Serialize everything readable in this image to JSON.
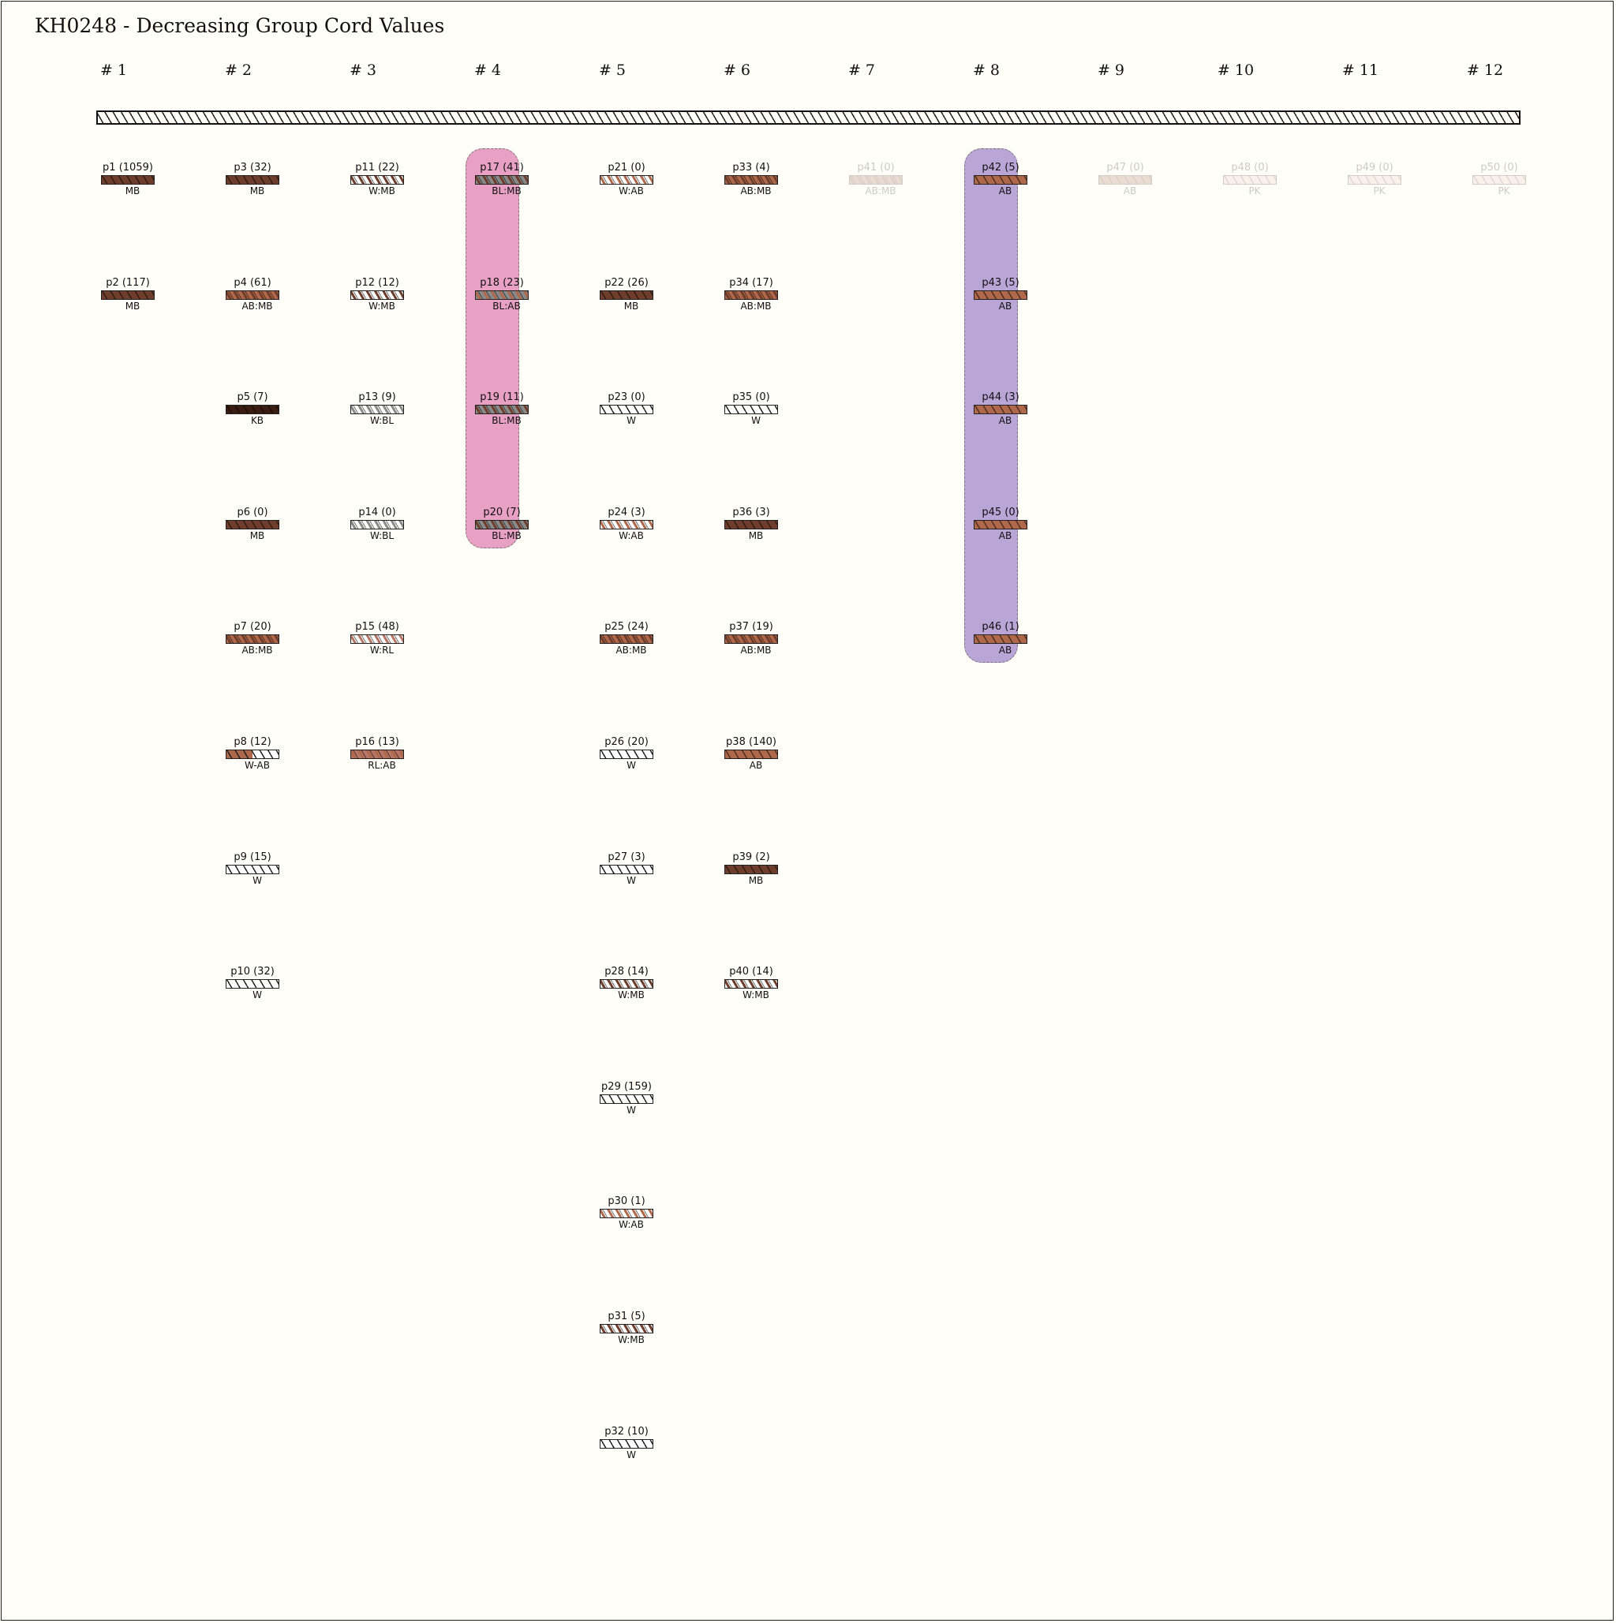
{
  "title": "KH0248 - Decreasing Group Cord Values",
  "groups": [
    "# 1",
    "# 2",
    "# 3",
    "# 4",
    "# 5",
    "# 6",
    "# 7",
    "# 8",
    "# 9",
    "# 10",
    "# 11",
    "# 12"
  ],
  "colors": {
    "MB": "#6e3d2b",
    "KB": "#3b1c12",
    "AB": "#b0684a",
    "W": "#ffffff",
    "BL": "#8a8a8a",
    "RL": "#b77565",
    "PK": "#f1c8be",
    "highlight_group4": "#e8a0c4",
    "highlight_group8": "#b9a5d6",
    "background": "#fffef8"
  },
  "highlights": [
    {
      "group": 4,
      "from_row": 1,
      "to_row": 4
    },
    {
      "group": 8,
      "from_row": 1,
      "to_row": 5
    }
  ],
  "cords": [
    {
      "label": "p1 (1059)",
      "color": "MB",
      "group": 1,
      "row": 1
    },
    {
      "label": "p2 (117)",
      "color": "MB",
      "group": 1,
      "row": 2
    },
    {
      "label": "p3 (32)",
      "color": "MB",
      "group": 2,
      "row": 1
    },
    {
      "label": "p4 (61)",
      "color": "AB:MB",
      "group": 2,
      "row": 2
    },
    {
      "label": "p5 (7)",
      "color": "KB",
      "group": 2,
      "row": 3
    },
    {
      "label": "p6 (0)",
      "color": "MB",
      "group": 2,
      "row": 4
    },
    {
      "label": "p7 (20)",
      "color": "AB:MB",
      "group": 2,
      "row": 5
    },
    {
      "label": "p8 (12)",
      "color": "W-AB",
      "group": 2,
      "row": 6
    },
    {
      "label": "p9 (15)",
      "color": "W",
      "group": 2,
      "row": 7
    },
    {
      "label": "p10 (32)",
      "color": "W",
      "group": 2,
      "row": 8
    },
    {
      "label": "p11 (22)",
      "color": "W:MB",
      "group": 3,
      "row": 1
    },
    {
      "label": "p12 (12)",
      "color": "W:MB",
      "group": 3,
      "row": 2
    },
    {
      "label": "p13 (9)",
      "color": "W:BL",
      "group": 3,
      "row": 3
    },
    {
      "label": "p14 (0)",
      "color": "W:BL",
      "group": 3,
      "row": 4
    },
    {
      "label": "p15 (48)",
      "color": "W:RL",
      "group": 3,
      "row": 5
    },
    {
      "label": "p16 (13)",
      "color": "RL:AB",
      "group": 3,
      "row": 6
    },
    {
      "label": "p17 (41)",
      "color": "BL:MB",
      "group": 4,
      "row": 1
    },
    {
      "label": "p18 (23)",
      "color": "BL:AB",
      "group": 4,
      "row": 2
    },
    {
      "label": "p19 (11)",
      "color": "BL:MB",
      "group": 4,
      "row": 3
    },
    {
      "label": "p20 (7)",
      "color": "BL:MB",
      "group": 4,
      "row": 4
    },
    {
      "label": "p21 (0)",
      "color": "W:AB",
      "group": 5,
      "row": 1
    },
    {
      "label": "p22 (26)",
      "color": "MB",
      "group": 5,
      "row": 2
    },
    {
      "label": "p23 (0)",
      "color": "W",
      "group": 5,
      "row": 3
    },
    {
      "label": "p24 (3)",
      "color": "W:AB",
      "group": 5,
      "row": 4
    },
    {
      "label": "p25 (24)",
      "color": "AB:MB",
      "group": 5,
      "row": 5
    },
    {
      "label": "p26 (20)",
      "color": "W",
      "group": 5,
      "row": 6
    },
    {
      "label": "p27 (3)",
      "color": "W",
      "group": 5,
      "row": 7
    },
    {
      "label": "p28 (14)",
      "color": "W:MB",
      "group": 5,
      "row": 8
    },
    {
      "label": "p29 (159)",
      "color": "W",
      "group": 5,
      "row": 9
    },
    {
      "label": "p30 (1)",
      "color": "W:AB",
      "group": 5,
      "row": 10
    },
    {
      "label": "p31 (5)",
      "color": "W:MB",
      "group": 5,
      "row": 11
    },
    {
      "label": "p32 (10)",
      "color": "W",
      "group": 5,
      "row": 12
    },
    {
      "label": "p33 (4)",
      "color": "AB:MB",
      "group": 6,
      "row": 1
    },
    {
      "label": "p34 (17)",
      "color": "AB:MB",
      "group": 6,
      "row": 2
    },
    {
      "label": "p35 (0)",
      "color": "W",
      "group": 6,
      "row": 3
    },
    {
      "label": "p36 (3)",
      "color": "MB",
      "group": 6,
      "row": 4
    },
    {
      "label": "p37 (19)",
      "color": "AB:MB",
      "group": 6,
      "row": 5
    },
    {
      "label": "p38 (140)",
      "color": "AB",
      "group": 6,
      "row": 6
    },
    {
      "label": "p39 (2)",
      "color": "MB",
      "group": 6,
      "row": 7
    },
    {
      "label": "p40 (14)",
      "color": "W:MB",
      "group": 6,
      "row": 8
    },
    {
      "label": "p41 (0)",
      "color": "AB:MB",
      "group": 7,
      "row": 1,
      "faded": true
    },
    {
      "label": "p42 (5)",
      "color": "AB",
      "group": 8,
      "row": 1
    },
    {
      "label": "p43 (5)",
      "color": "AB",
      "group": 8,
      "row": 2
    },
    {
      "label": "p44 (3)",
      "color": "AB",
      "group": 8,
      "row": 3
    },
    {
      "label": "p45 (0)",
      "color": "AB",
      "group": 8,
      "row": 4
    },
    {
      "label": "p46 (1)",
      "color": "AB",
      "group": 8,
      "row": 5
    },
    {
      "label": "p47 (0)",
      "color": "AB",
      "group": 9,
      "row": 1,
      "faded": true
    },
    {
      "label": "p48 (0)",
      "color": "PK",
      "group": 10,
      "row": 1,
      "faded": true
    },
    {
      "label": "p49 (0)",
      "color": "PK",
      "group": 11,
      "row": 1,
      "faded": true
    },
    {
      "label": "p50 (0)",
      "color": "PK",
      "group": 12,
      "row": 1,
      "faded": true
    }
  ]
}
